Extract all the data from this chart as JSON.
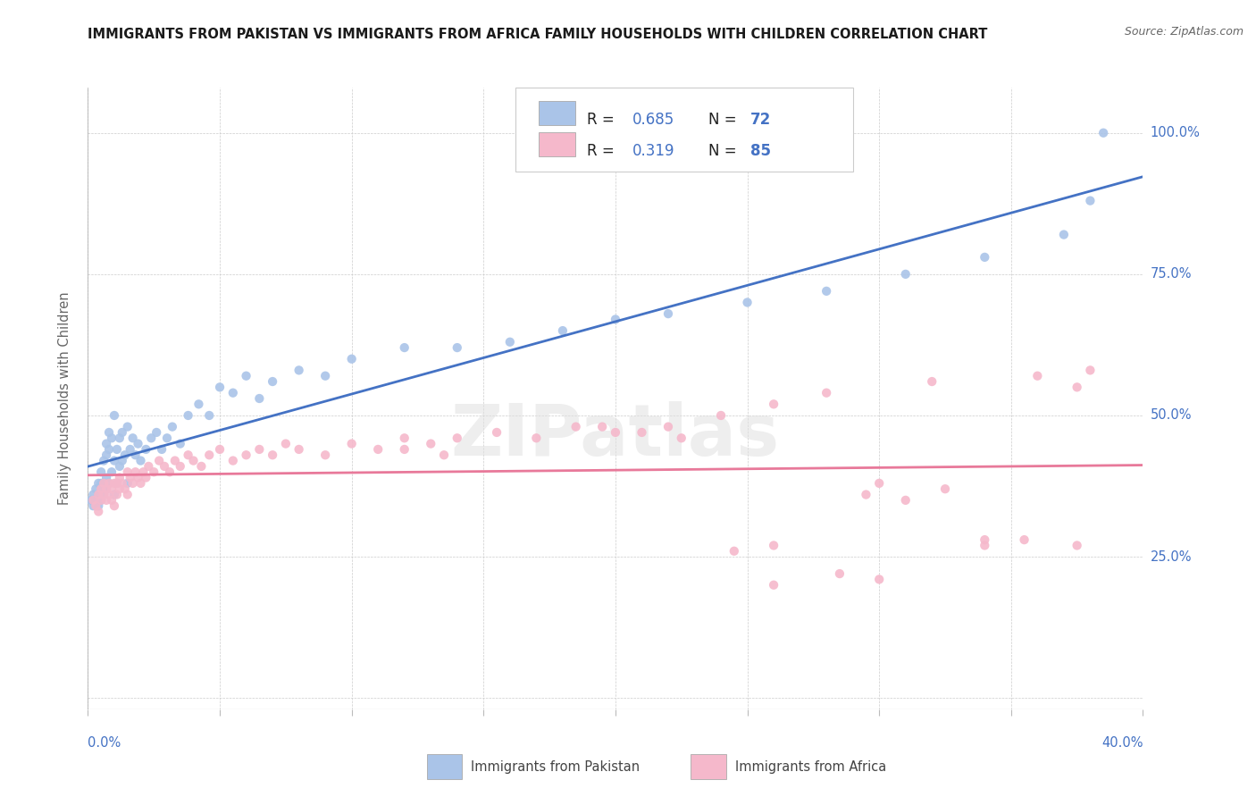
{
  "title": "IMMIGRANTS FROM PAKISTAN VS IMMIGRANTS FROM AFRICA FAMILY HOUSEHOLDS WITH CHILDREN CORRELATION CHART",
  "source": "Source: ZipAtlas.com",
  "ylabel": "Family Households with Children",
  "pakistan_R": 0.685,
  "pakistan_N": 72,
  "africa_R": 0.319,
  "africa_N": 85,
  "pakistan_color": "#aac4e8",
  "pakistan_line_color": "#4472c4",
  "africa_color": "#f5b8cb",
  "africa_line_color": "#e8799a",
  "background_color": "#ffffff",
  "watermark": "ZIPatlas",
  "xlim": [
    0.0,
    0.4
  ],
  "ylim": [
    -0.02,
    1.08
  ],
  "yticks": [
    0.0,
    0.25,
    0.5,
    0.75,
    1.0
  ],
  "ytick_labels": [
    "",
    "25.0%",
    "50.0%",
    "75.0%",
    "100.0%"
  ],
  "xticks": [
    0.0,
    0.05,
    0.1,
    0.15,
    0.2,
    0.25,
    0.3,
    0.35,
    0.4
  ],
  "pk_x": [
    0.001,
    0.002,
    0.002,
    0.003,
    0.003,
    0.004,
    0.004,
    0.004,
    0.005,
    0.005,
    0.005,
    0.005,
    0.006,
    0.006,
    0.006,
    0.007,
    0.007,
    0.007,
    0.007,
    0.008,
    0.008,
    0.008,
    0.009,
    0.009,
    0.01,
    0.01,
    0.01,
    0.011,
    0.011,
    0.012,
    0.012,
    0.013,
    0.013,
    0.014,
    0.015,
    0.015,
    0.016,
    0.017,
    0.018,
    0.019,
    0.02,
    0.022,
    0.024,
    0.026,
    0.028,
    0.03,
    0.032,
    0.035,
    0.038,
    0.042,
    0.046,
    0.05,
    0.055,
    0.06,
    0.065,
    0.07,
    0.08,
    0.09,
    0.1,
    0.12,
    0.14,
    0.16,
    0.18,
    0.2,
    0.22,
    0.25,
    0.28,
    0.31,
    0.34,
    0.37,
    0.38,
    0.385
  ],
  "pk_y": [
    0.35,
    0.36,
    0.34,
    0.35,
    0.37,
    0.36,
    0.38,
    0.34,
    0.35,
    0.37,
    0.38,
    0.4,
    0.36,
    0.38,
    0.42,
    0.37,
    0.39,
    0.45,
    0.43,
    0.38,
    0.44,
    0.47,
    0.4,
    0.46,
    0.36,
    0.42,
    0.5,
    0.38,
    0.44,
    0.41,
    0.46,
    0.42,
    0.47,
    0.43,
    0.38,
    0.48,
    0.44,
    0.46,
    0.43,
    0.45,
    0.42,
    0.44,
    0.46,
    0.47,
    0.44,
    0.46,
    0.48,
    0.45,
    0.5,
    0.52,
    0.5,
    0.55,
    0.54,
    0.57,
    0.53,
    0.56,
    0.58,
    0.57,
    0.6,
    0.62,
    0.62,
    0.63,
    0.65,
    0.67,
    0.68,
    0.7,
    0.72,
    0.75,
    0.78,
    0.82,
    0.88,
    1.0
  ],
  "af_x": [
    0.002,
    0.003,
    0.004,
    0.004,
    0.005,
    0.005,
    0.006,
    0.006,
    0.007,
    0.007,
    0.008,
    0.008,
    0.009,
    0.009,
    0.01,
    0.01,
    0.011,
    0.011,
    0.012,
    0.012,
    0.013,
    0.014,
    0.015,
    0.015,
    0.016,
    0.017,
    0.018,
    0.019,
    0.02,
    0.021,
    0.022,
    0.023,
    0.025,
    0.027,
    0.029,
    0.031,
    0.033,
    0.035,
    0.038,
    0.04,
    0.043,
    0.046,
    0.05,
    0.055,
    0.06,
    0.065,
    0.07,
    0.075,
    0.08,
    0.09,
    0.1,
    0.11,
    0.12,
    0.13,
    0.14,
    0.155,
    0.17,
    0.185,
    0.2,
    0.22,
    0.24,
    0.26,
    0.28,
    0.3,
    0.32,
    0.34,
    0.36,
    0.375,
    0.38,
    0.295,
    0.31,
    0.325,
    0.245,
    0.26,
    0.34,
    0.355,
    0.375,
    0.26,
    0.285,
    0.3,
    0.195,
    0.21,
    0.225,
    0.12,
    0.135
  ],
  "af_y": [
    0.35,
    0.34,
    0.36,
    0.33,
    0.37,
    0.35,
    0.36,
    0.38,
    0.35,
    0.37,
    0.36,
    0.38,
    0.35,
    0.37,
    0.34,
    0.38,
    0.36,
    0.38,
    0.37,
    0.39,
    0.38,
    0.37,
    0.36,
    0.4,
    0.39,
    0.38,
    0.4,
    0.39,
    0.38,
    0.4,
    0.39,
    0.41,
    0.4,
    0.42,
    0.41,
    0.4,
    0.42,
    0.41,
    0.43,
    0.42,
    0.41,
    0.43,
    0.44,
    0.42,
    0.43,
    0.44,
    0.43,
    0.45,
    0.44,
    0.43,
    0.45,
    0.44,
    0.46,
    0.45,
    0.46,
    0.47,
    0.46,
    0.48,
    0.47,
    0.48,
    0.5,
    0.52,
    0.54,
    0.38,
    0.56,
    0.28,
    0.57,
    0.55,
    0.58,
    0.36,
    0.35,
    0.37,
    0.26,
    0.27,
    0.27,
    0.28,
    0.27,
    0.2,
    0.22,
    0.21,
    0.48,
    0.47,
    0.46,
    0.44,
    0.43
  ]
}
